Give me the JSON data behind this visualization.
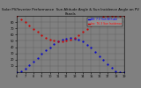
{
  "title": "Solar PV/Inverter Performance  Sun Altitude Angle & Sun Incidence Angle on PV Panels",
  "legend_blue": "Alt: 7.0 Sun Altitude",
  "legend_red": "Inc: 76.3 Sun Incidence",
  "blue_color": "#0000CC",
  "red_color": "#CC0000",
  "fig_facecolor": "#808080",
  "plot_facecolor": "#808080",
  "ylim": [
    0,
    90
  ],
  "yticks": [
    10,
    20,
    30,
    40,
    50,
    60,
    70,
    80
  ],
  "ytick_labels": [
    "10",
    "20",
    "30",
    "40",
    "50",
    "60",
    "70",
    "80"
  ],
  "time_points": [
    6.0,
    6.5,
    7.0,
    7.5,
    8.0,
    8.5,
    9.0,
    9.5,
    10.0,
    10.5,
    11.0,
    11.5,
    12.0,
    12.5,
    13.0,
    13.5,
    14.0,
    14.5,
    15.0,
    15.5,
    16.0,
    16.5,
    17.0,
    17.5,
    18.0,
    18.5,
    19.0
  ],
  "altitude": [
    0,
    2,
    6,
    11,
    17,
    23,
    29,
    35,
    40,
    45,
    49,
    52,
    54,
    55,
    54,
    52,
    49,
    44,
    39,
    33,
    26,
    19,
    13,
    7,
    2,
    0,
    0
  ],
  "incidence": [
    90,
    85,
    80,
    74,
    69,
    64,
    59,
    55,
    52,
    50,
    49,
    49,
    50,
    52,
    55,
    59,
    64,
    69,
    74,
    79,
    84,
    89,
    90,
    90,
    90,
    90,
    90
  ],
  "xlim": [
    6.0,
    19.0
  ],
  "xticks": [
    6,
    7,
    8,
    9,
    10,
    11,
    12,
    13,
    14,
    15,
    16,
    17,
    18,
    19
  ],
  "xtick_labels": [
    "6",
    "7",
    "8",
    "9",
    "10",
    "11",
    "12",
    "13",
    "14",
    "15",
    "16",
    "17",
    "18",
    "19"
  ],
  "grid_color": "#606060",
  "title_fontsize": 2.8,
  "tick_fontsize": 2.5,
  "legend_fontsize": 2.2,
  "dot_size": 1.2
}
